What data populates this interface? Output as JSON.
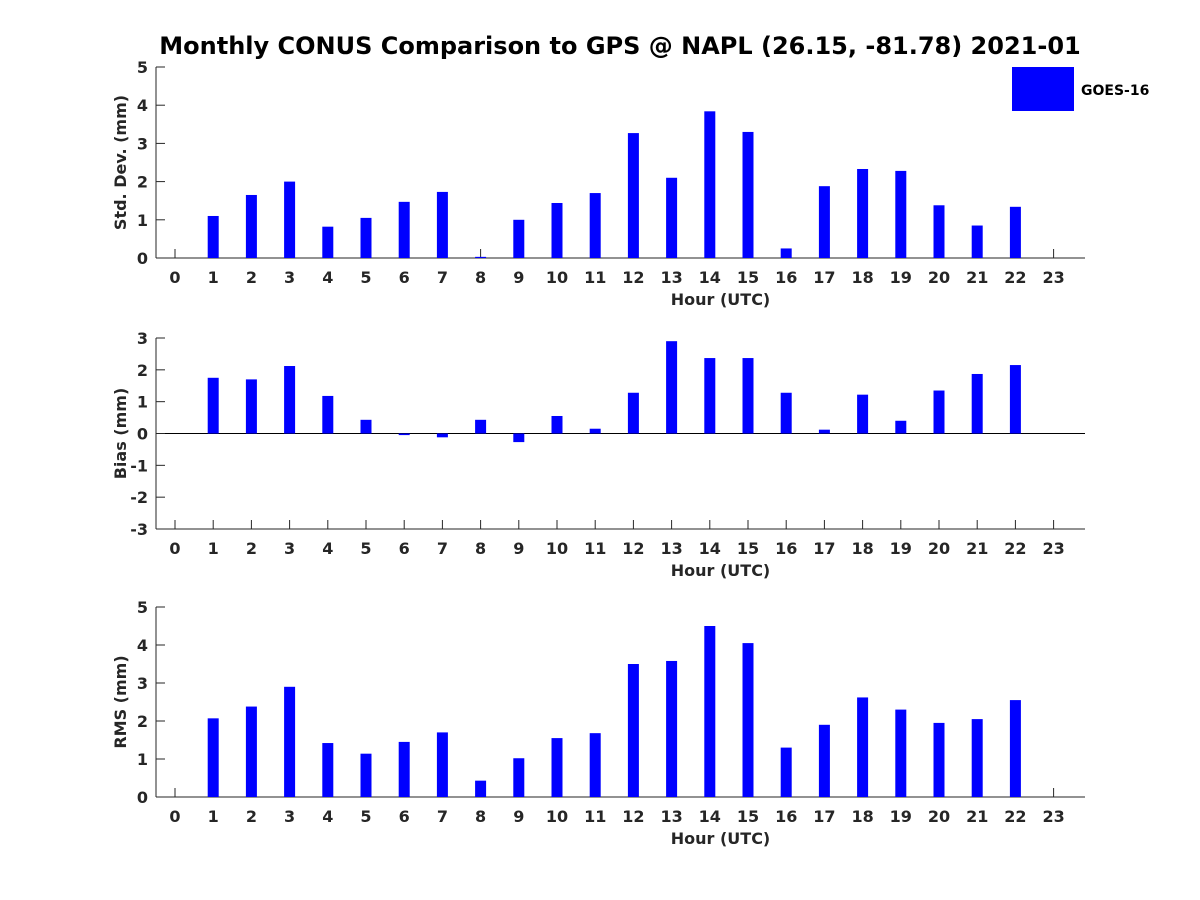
{
  "title": "Monthly CONUS Comparison to GPS @ NAPL (26.15, -81.78) 2021-01",
  "colors": {
    "series": "#0000ff",
    "axis": "#262626"
  },
  "legend": {
    "label": "GOES-16",
    "placement": "top-right"
  },
  "chart_data": [
    {
      "type": "bar",
      "categories": [
        "0",
        "1",
        "2",
        "3",
        "4",
        "5",
        "6",
        "7",
        "8",
        "9",
        "10",
        "11",
        "12",
        "13",
        "14",
        "15",
        "16",
        "17",
        "18",
        "19",
        "20",
        "21",
        "22",
        "23"
      ],
      "series": [
        {
          "name": "GOES-16",
          "values": [
            null,
            1.1,
            1.65,
            2.0,
            0.82,
            1.05,
            1.47,
            1.73,
            0.03,
            1.0,
            1.44,
            1.7,
            3.27,
            2.1,
            3.84,
            3.3,
            0.25,
            1.88,
            2.33,
            2.28,
            1.38,
            0.85,
            1.34,
            null
          ]
        }
      ],
      "xlabel": "Hour (UTC)",
      "ylabel": "Std. Dev. (mm)",
      "ylim": [
        0,
        5
      ],
      "yticks": [
        0,
        1,
        2,
        3,
        4,
        5
      ]
    },
    {
      "type": "bar",
      "categories": [
        "0",
        "1",
        "2",
        "3",
        "4",
        "5",
        "6",
        "7",
        "8",
        "9",
        "10",
        "11",
        "12",
        "13",
        "14",
        "15",
        "16",
        "17",
        "18",
        "19",
        "20",
        "21",
        "22",
        "23"
      ],
      "series": [
        {
          "name": "GOES-16",
          "values": [
            null,
            1.75,
            1.7,
            2.12,
            1.18,
            0.43,
            -0.05,
            -0.12,
            0.43,
            -0.27,
            0.55,
            0.15,
            1.28,
            2.9,
            2.37,
            2.37,
            1.28,
            0.12,
            1.22,
            0.4,
            1.35,
            1.87,
            2.15,
            null
          ]
        }
      ],
      "xlabel": "Hour (UTC)",
      "ylabel": "Bias (mm)",
      "ylim": [
        -3,
        3
      ],
      "yticks": [
        -3,
        -2,
        -1,
        0,
        1,
        2,
        3
      ]
    },
    {
      "type": "bar",
      "categories": [
        "0",
        "1",
        "2",
        "3",
        "4",
        "5",
        "6",
        "7",
        "8",
        "9",
        "10",
        "11",
        "12",
        "13",
        "14",
        "15",
        "16",
        "17",
        "18",
        "19",
        "20",
        "21",
        "22",
        "23"
      ],
      "series": [
        {
          "name": "GOES-16",
          "values": [
            null,
            2.07,
            2.38,
            2.9,
            1.42,
            1.14,
            1.45,
            1.7,
            0.43,
            1.02,
            1.55,
            1.68,
            3.5,
            3.58,
            4.5,
            4.05,
            1.3,
            1.9,
            2.62,
            2.3,
            1.95,
            2.05,
            2.55,
            null
          ]
        }
      ],
      "xlabel": "Hour (UTC)",
      "ylabel": "RMS (mm)",
      "ylim": [
        0,
        5
      ],
      "yticks": [
        0,
        1,
        2,
        3,
        4,
        5
      ]
    }
  ]
}
